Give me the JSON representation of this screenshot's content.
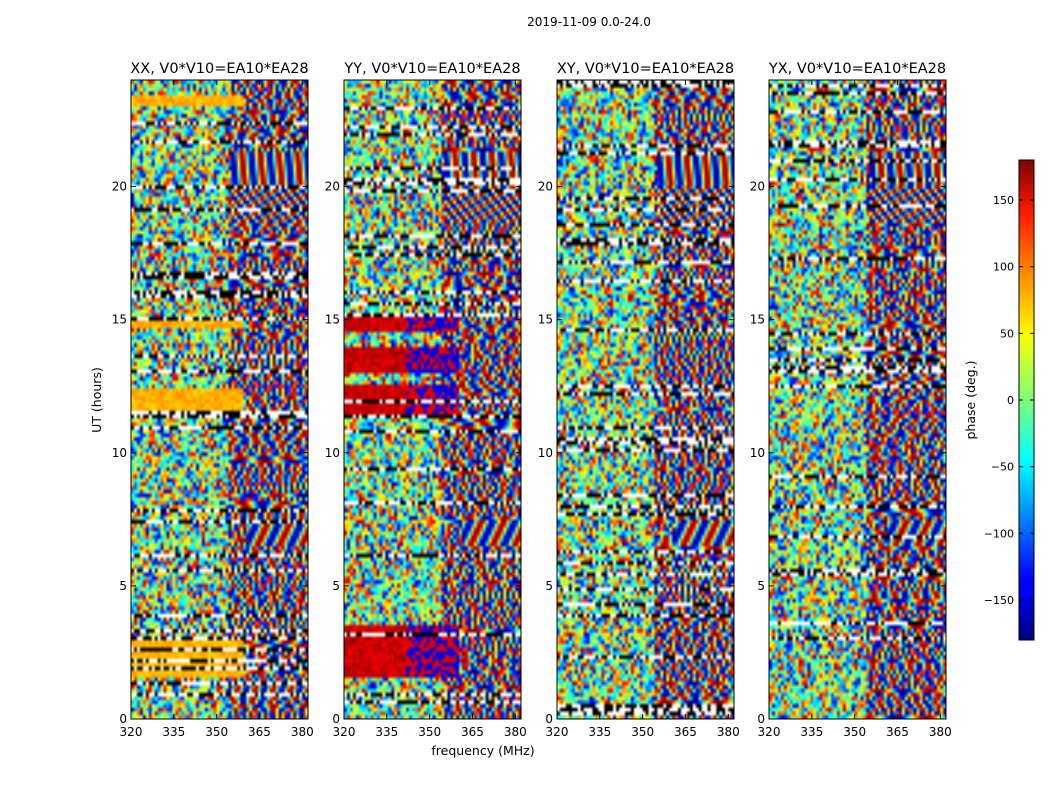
{
  "chart_data": {
    "type": "heatmap",
    "suptitle": "2019-11-09 0.0-24.0",
    "panels": [
      {
        "title": "XX, V0*V10=EA10*EA28",
        "pol": "XX"
      },
      {
        "title": "YY, V0*V10=EA10*EA28",
        "pol": "YY"
      },
      {
        "title": "XY, V0*V10=EA10*EA28",
        "pol": "XY"
      },
      {
        "title": "YX, V0*V10=EA10*EA28",
        "pol": "YX"
      }
    ],
    "xlabel": "frequency (MHz)",
    "ylabel": "UT (hours)",
    "xlim": [
      320,
      382
    ],
    "ylim": [
      0,
      24
    ],
    "xticks": [
      "320",
      "335",
      "350",
      "365",
      "380"
    ],
    "xtick_values": [
      320,
      335,
      350,
      365,
      380
    ],
    "yticks": [
      "0",
      "5",
      "10",
      "15",
      "20"
    ],
    "ytick_values": [
      0,
      5,
      10,
      15,
      20
    ],
    "colorbar": {
      "label": "phase (deg.)",
      "range": [
        -180,
        180
      ],
      "ticks": [
        "−150",
        "−100",
        "−50",
        "0",
        "50",
        "100",
        "150"
      ],
      "tick_values": [
        -150,
        -100,
        -50,
        0,
        50,
        100,
        150
      ],
      "colormap": "jet"
    }
  }
}
